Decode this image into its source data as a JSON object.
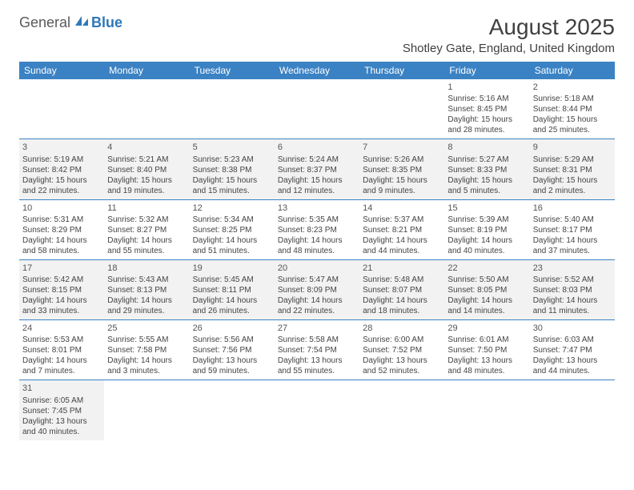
{
  "brand": {
    "part1": "General",
    "part2": "Blue"
  },
  "title": "August 2025",
  "location": "Shotley Gate, England, United Kingdom",
  "colors": {
    "header_bg": "#3b82c4",
    "header_text": "#ffffff",
    "row_alt_bg": "#f2f2f2",
    "border": "#3b82c4",
    "logo_gray": "#5a5a5a",
    "logo_blue": "#2f78b7"
  },
  "weekdays": [
    "Sunday",
    "Monday",
    "Tuesday",
    "Wednesday",
    "Thursday",
    "Friday",
    "Saturday"
  ],
  "weeks": [
    [
      null,
      null,
      null,
      null,
      null,
      {
        "d": "1",
        "sr": "Sunrise: 5:16 AM",
        "ss": "Sunset: 8:45 PM",
        "dl1": "Daylight: 15 hours",
        "dl2": "and 28 minutes."
      },
      {
        "d": "2",
        "sr": "Sunrise: 5:18 AM",
        "ss": "Sunset: 8:44 PM",
        "dl1": "Daylight: 15 hours",
        "dl2": "and 25 minutes."
      }
    ],
    [
      {
        "d": "3",
        "sr": "Sunrise: 5:19 AM",
        "ss": "Sunset: 8:42 PM",
        "dl1": "Daylight: 15 hours",
        "dl2": "and 22 minutes."
      },
      {
        "d": "4",
        "sr": "Sunrise: 5:21 AM",
        "ss": "Sunset: 8:40 PM",
        "dl1": "Daylight: 15 hours",
        "dl2": "and 19 minutes."
      },
      {
        "d": "5",
        "sr": "Sunrise: 5:23 AM",
        "ss": "Sunset: 8:38 PM",
        "dl1": "Daylight: 15 hours",
        "dl2": "and 15 minutes."
      },
      {
        "d": "6",
        "sr": "Sunrise: 5:24 AM",
        "ss": "Sunset: 8:37 PM",
        "dl1": "Daylight: 15 hours",
        "dl2": "and 12 minutes."
      },
      {
        "d": "7",
        "sr": "Sunrise: 5:26 AM",
        "ss": "Sunset: 8:35 PM",
        "dl1": "Daylight: 15 hours",
        "dl2": "and 9 minutes."
      },
      {
        "d": "8",
        "sr": "Sunrise: 5:27 AM",
        "ss": "Sunset: 8:33 PM",
        "dl1": "Daylight: 15 hours",
        "dl2": "and 5 minutes."
      },
      {
        "d": "9",
        "sr": "Sunrise: 5:29 AM",
        "ss": "Sunset: 8:31 PM",
        "dl1": "Daylight: 15 hours",
        "dl2": "and 2 minutes."
      }
    ],
    [
      {
        "d": "10",
        "sr": "Sunrise: 5:31 AM",
        "ss": "Sunset: 8:29 PM",
        "dl1": "Daylight: 14 hours",
        "dl2": "and 58 minutes."
      },
      {
        "d": "11",
        "sr": "Sunrise: 5:32 AM",
        "ss": "Sunset: 8:27 PM",
        "dl1": "Daylight: 14 hours",
        "dl2": "and 55 minutes."
      },
      {
        "d": "12",
        "sr": "Sunrise: 5:34 AM",
        "ss": "Sunset: 8:25 PM",
        "dl1": "Daylight: 14 hours",
        "dl2": "and 51 minutes."
      },
      {
        "d": "13",
        "sr": "Sunrise: 5:35 AM",
        "ss": "Sunset: 8:23 PM",
        "dl1": "Daylight: 14 hours",
        "dl2": "and 48 minutes."
      },
      {
        "d": "14",
        "sr": "Sunrise: 5:37 AM",
        "ss": "Sunset: 8:21 PM",
        "dl1": "Daylight: 14 hours",
        "dl2": "and 44 minutes."
      },
      {
        "d": "15",
        "sr": "Sunrise: 5:39 AM",
        "ss": "Sunset: 8:19 PM",
        "dl1": "Daylight: 14 hours",
        "dl2": "and 40 minutes."
      },
      {
        "d": "16",
        "sr": "Sunrise: 5:40 AM",
        "ss": "Sunset: 8:17 PM",
        "dl1": "Daylight: 14 hours",
        "dl2": "and 37 minutes."
      }
    ],
    [
      {
        "d": "17",
        "sr": "Sunrise: 5:42 AM",
        "ss": "Sunset: 8:15 PM",
        "dl1": "Daylight: 14 hours",
        "dl2": "and 33 minutes."
      },
      {
        "d": "18",
        "sr": "Sunrise: 5:43 AM",
        "ss": "Sunset: 8:13 PM",
        "dl1": "Daylight: 14 hours",
        "dl2": "and 29 minutes."
      },
      {
        "d": "19",
        "sr": "Sunrise: 5:45 AM",
        "ss": "Sunset: 8:11 PM",
        "dl1": "Daylight: 14 hours",
        "dl2": "and 26 minutes."
      },
      {
        "d": "20",
        "sr": "Sunrise: 5:47 AM",
        "ss": "Sunset: 8:09 PM",
        "dl1": "Daylight: 14 hours",
        "dl2": "and 22 minutes."
      },
      {
        "d": "21",
        "sr": "Sunrise: 5:48 AM",
        "ss": "Sunset: 8:07 PM",
        "dl1": "Daylight: 14 hours",
        "dl2": "and 18 minutes."
      },
      {
        "d": "22",
        "sr": "Sunrise: 5:50 AM",
        "ss": "Sunset: 8:05 PM",
        "dl1": "Daylight: 14 hours",
        "dl2": "and 14 minutes."
      },
      {
        "d": "23",
        "sr": "Sunrise: 5:52 AM",
        "ss": "Sunset: 8:03 PM",
        "dl1": "Daylight: 14 hours",
        "dl2": "and 11 minutes."
      }
    ],
    [
      {
        "d": "24",
        "sr": "Sunrise: 5:53 AM",
        "ss": "Sunset: 8:01 PM",
        "dl1": "Daylight: 14 hours",
        "dl2": "and 7 minutes."
      },
      {
        "d": "25",
        "sr": "Sunrise: 5:55 AM",
        "ss": "Sunset: 7:58 PM",
        "dl1": "Daylight: 14 hours",
        "dl2": "and 3 minutes."
      },
      {
        "d": "26",
        "sr": "Sunrise: 5:56 AM",
        "ss": "Sunset: 7:56 PM",
        "dl1": "Daylight: 13 hours",
        "dl2": "and 59 minutes."
      },
      {
        "d": "27",
        "sr": "Sunrise: 5:58 AM",
        "ss": "Sunset: 7:54 PM",
        "dl1": "Daylight: 13 hours",
        "dl2": "and 55 minutes."
      },
      {
        "d": "28",
        "sr": "Sunrise: 6:00 AM",
        "ss": "Sunset: 7:52 PM",
        "dl1": "Daylight: 13 hours",
        "dl2": "and 52 minutes."
      },
      {
        "d": "29",
        "sr": "Sunrise: 6:01 AM",
        "ss": "Sunset: 7:50 PM",
        "dl1": "Daylight: 13 hours",
        "dl2": "and 48 minutes."
      },
      {
        "d": "30",
        "sr": "Sunrise: 6:03 AM",
        "ss": "Sunset: 7:47 PM",
        "dl1": "Daylight: 13 hours",
        "dl2": "and 44 minutes."
      }
    ],
    [
      {
        "d": "31",
        "sr": "Sunrise: 6:05 AM",
        "ss": "Sunset: 7:45 PM",
        "dl1": "Daylight: 13 hours",
        "dl2": "and 40 minutes."
      },
      null,
      null,
      null,
      null,
      null,
      null
    ]
  ]
}
